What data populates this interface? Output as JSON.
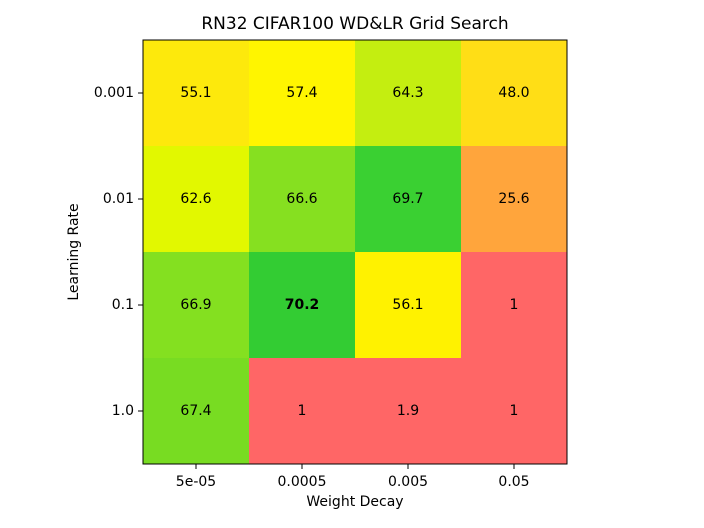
{
  "chart_data": {
    "type": "heatmap",
    "title": "RN32 CIFAR100 WD&LR Grid Search",
    "x_label": "Weight Decay",
    "y_label": "Learning Rate",
    "x_categories": [
      "5e-05",
      "0.0005",
      "0.005",
      "0.05"
    ],
    "y_categories": [
      "0.001",
      "0.01",
      "0.1",
      "1.0"
    ],
    "values": [
      [
        55.1,
        57.4,
        64.3,
        48
      ],
      [
        62.6,
        66.6,
        69.7,
        25.6
      ],
      [
        66.9,
        70.2,
        56.1,
        1
      ],
      [
        67.4,
        1,
        1.9,
        1
      ]
    ],
    "value_labels": [
      [
        "55.1",
        "57.4",
        "64.3",
        "48.0"
      ],
      [
        "62.6",
        "66.6",
        "69.7",
        "25.6"
      ],
      [
        "66.9",
        "70.2",
        "56.1",
        "1"
      ],
      [
        "67.4",
        "1",
        "1.9",
        "1"
      ]
    ],
    "colors": [
      [
        "#fde90c",
        "#fff500",
        "#c4ee10",
        "#ffde16"
      ],
      [
        "#e2f800",
        "#86e020",
        "#3ad032",
        "#ffa53c"
      ],
      [
        "#84e020",
        "#33cc33",
        "#fff200",
        "#ff6666"
      ],
      [
        "#78dc22",
        "#ff6666",
        "#ff6666",
        "#ff6666"
      ]
    ],
    "bold_max": true
  }
}
